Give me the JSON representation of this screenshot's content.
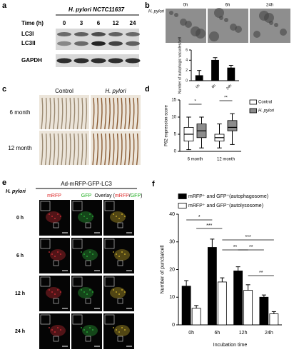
{
  "panels": {
    "a": {
      "label": "a",
      "strain": "H. pylori NCTC11637",
      "time_label": "Time (h)",
      "times": [
        "0",
        "3",
        "6",
        "12",
        "24"
      ],
      "bands": [
        "LC3I",
        "LC3II",
        "GAPDH"
      ]
    },
    "b": {
      "label": "b",
      "strain": "H. pylori",
      "images": [
        "0h",
        "6h",
        "24h"
      ]
    },
    "c": {
      "label": "c",
      "columns": [
        "Control",
        "H. pylori"
      ],
      "rows": [
        "6 month",
        "12 month"
      ]
    },
    "d": {
      "label": "d"
    },
    "e": {
      "label": "e",
      "title": "Ad-mRFP-GFP-LC3",
      "strain": "H. pylori",
      "columns": [
        "mRFP",
        "GFP"
      ],
      "overlay_parts": [
        "Overlay (",
        "mRFP",
        "/",
        "GFP",
        ")"
      ],
      "rows": [
        "0 h",
        "6 h",
        "12 h",
        "24 h"
      ]
    },
    "f": {
      "label": "f"
    }
  },
  "chart_data": [
    {
      "type": "bar",
      "y_label": "Number of autophagic vacuoles/cell",
      "categories": [
        "0h",
        "6h",
        "24h"
      ],
      "values": [
        1,
        4,
        2.5
      ],
      "errors": [
        1,
        0.5,
        0.5
      ],
      "color": "#000000",
      "ylim": [
        0,
        6
      ],
      "yticks": [
        0,
        2,
        4,
        6
      ]
    },
    {
      "type": "box",
      "y_label": "P62 expression score",
      "categories": [
        "6 month",
        "12 month"
      ],
      "series": [
        {
          "name": "Control",
          "color": "#ffffff",
          "values": [
            [
              0.5,
              3,
              5,
              7,
              10
            ],
            [
              1,
              3,
              4,
              5,
              8
            ]
          ]
        },
        {
          "name": "H. pylori",
          "color": "#8c8c8c",
          "values": [
            [
              1,
              4,
              6,
              8,
              10
            ],
            [
              2,
              6,
              7,
              9,
              11
            ]
          ]
        }
      ],
      "ylim": [
        0,
        15
      ],
      "yticks": [
        0,
        5,
        10,
        15
      ],
      "annotations": [
        "*",
        "**"
      ]
    },
    {
      "type": "bar",
      "y_label": "Number of puncta/cell",
      "x_label": "Incubation time",
      "categories": [
        "0h",
        "6h",
        "12h",
        "24h"
      ],
      "series": [
        {
          "name": "mRFP⁺ and GFP⁺(autophagosome)",
          "color": "#000000",
          "values": [
            14,
            28,
            19.5,
            10
          ],
          "errors": [
            2,
            3,
            1.5,
            0.8
          ]
        },
        {
          "name": "mRFP⁺ and GFP⁻(autolysosome)",
          "color": "#ffffff",
          "values": [
            6,
            15.5,
            12.5,
            4
          ],
          "errors": [
            1,
            1.5,
            2,
            0.8
          ]
        }
      ],
      "ylim": [
        0,
        40
      ],
      "yticks": [
        0,
        10,
        20,
        30,
        40
      ],
      "annotations": [
        "*",
        "***",
        "**",
        "**",
        "***",
        "**"
      ]
    }
  ]
}
